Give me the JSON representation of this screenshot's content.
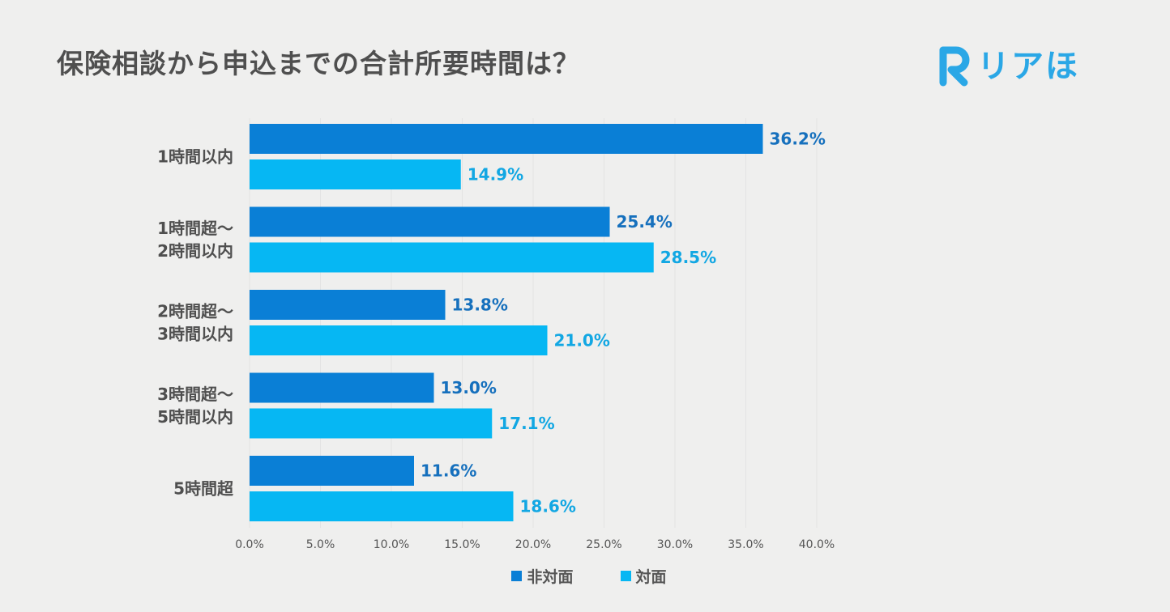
{
  "title": "保険相談から申込までの合計所要時間は？",
  "logo": {
    "text": "リアほ",
    "mark": "R",
    "color": "#2aa7e6"
  },
  "chart_data": {
    "type": "bar",
    "orientation": "horizontal",
    "title": "保険相談から申込までの合計所要時間は？",
    "categories": [
      [
        "1時間以内"
      ],
      [
        "1時間超～",
        "2時間以内"
      ],
      [
        "2時間超～",
        "3時間以内"
      ],
      [
        "3時間超～",
        "5時間以内"
      ],
      [
        "5時間超"
      ]
    ],
    "series": [
      {
        "name": "非対面",
        "values": [
          36.2,
          25.4,
          13.8,
          13.0,
          11.6
        ],
        "color": "#0a7fd6",
        "label_color": "#1670bd"
      },
      {
        "name": "対面",
        "values": [
          14.9,
          28.5,
          21.0,
          17.1,
          18.6
        ],
        "color": "#06b7f3",
        "label_color": "#12a7e3"
      }
    ],
    "xlim": [
      0,
      40
    ],
    "xticks": [
      "0.0%",
      "5.0%",
      "10.0%",
      "15.0%",
      "20.0%",
      "25.0%",
      "30.0%",
      "35.0%",
      "40.0%"
    ],
    "value_suffix": "%",
    "grid": true,
    "legend_position": "bottom"
  }
}
